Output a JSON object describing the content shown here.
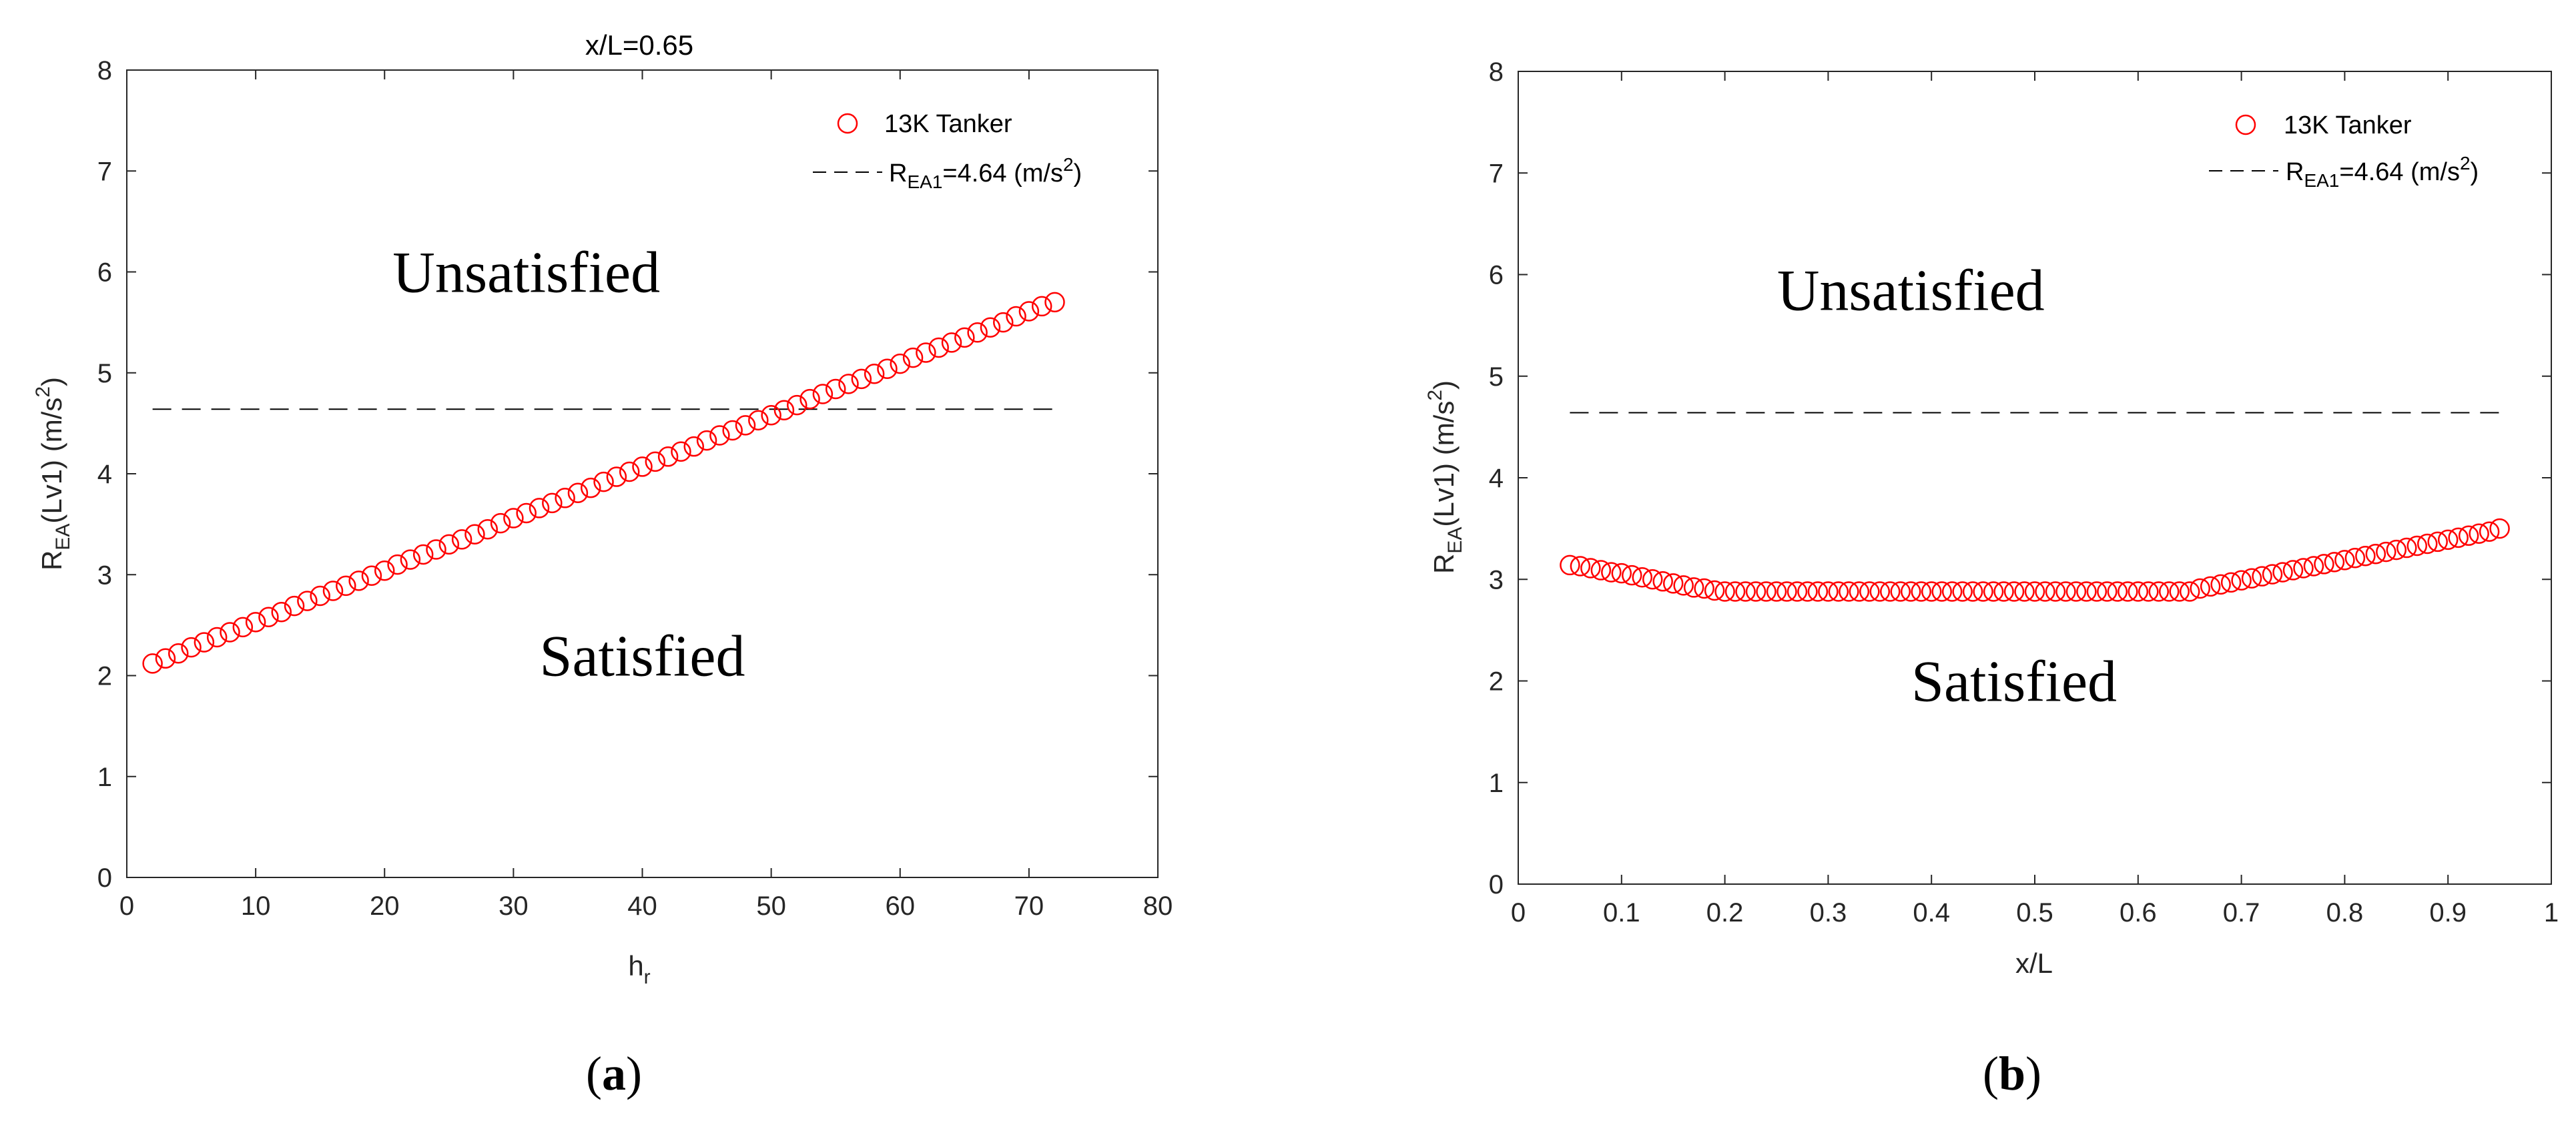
{
  "chart_data": [
    {
      "type": "scatter",
      "title": "x/L=0.65",
      "caption": {
        "open": "(",
        "letter": "a",
        "close": ")"
      },
      "xlabel": {
        "main": "h",
        "sub": "r"
      },
      "ylabel": {
        "main": "R",
        "sub": "EA",
        "rest": "(Lv1) (m/s",
        "sup": "2",
        "end": ")"
      },
      "xlim": [
        0,
        80
      ],
      "ylim": [
        0,
        8
      ],
      "xticks": [
        0,
        10,
        20,
        30,
        40,
        50,
        60,
        70,
        80
      ],
      "yticks": [
        0,
        1,
        2,
        3,
        4,
        5,
        6,
        7,
        8
      ],
      "xtick_labels": [
        "0",
        "10",
        "20",
        "30",
        "40",
        "50",
        "60",
        "70",
        "80"
      ],
      "ytick_labels": [
        "0",
        "1",
        "2",
        "3",
        "4",
        "5",
        "6",
        "7",
        "8"
      ],
      "series": [
        {
          "name": "13K Tanker",
          "marker": "circle",
          "color": "#ff0000",
          "x": [
            2,
            3,
            4,
            5,
            6,
            7,
            8,
            9,
            10,
            11,
            12,
            13,
            14,
            15,
            16,
            17,
            18,
            19,
            20,
            21,
            22,
            23,
            24,
            25,
            26,
            27,
            28,
            29,
            30,
            31,
            32,
            33,
            34,
            35,
            36,
            37,
            38,
            39,
            40,
            41,
            42,
            43,
            44,
            45,
            46,
            47,
            48,
            49,
            50,
            51,
            52,
            53,
            54,
            55,
            56,
            57,
            58,
            59,
            60,
            61,
            62,
            63,
            64,
            65,
            66,
            67,
            68,
            69,
            70,
            71,
            72
          ],
          "y": [
            2.12,
            2.17,
            2.22,
            2.28,
            2.33,
            2.38,
            2.43,
            2.48,
            2.53,
            2.58,
            2.63,
            2.69,
            2.74,
            2.79,
            2.84,
            2.89,
            2.94,
            2.99,
            3.04,
            3.1,
            3.15,
            3.2,
            3.25,
            3.3,
            3.35,
            3.4,
            3.45,
            3.51,
            3.56,
            3.61,
            3.66,
            3.71,
            3.76,
            3.81,
            3.86,
            3.92,
            3.97,
            4.02,
            4.07,
            4.12,
            4.17,
            4.22,
            4.27,
            4.33,
            4.38,
            4.43,
            4.48,
            4.53,
            4.58,
            4.63,
            4.68,
            4.74,
            4.79,
            4.84,
            4.89,
            4.94,
            4.99,
            5.04,
            5.09,
            5.15,
            5.2,
            5.25,
            5.3,
            5.35,
            5.4,
            5.45,
            5.5,
            5.56,
            5.61,
            5.66,
            5.7
          ]
        }
      ],
      "reference_line": {
        "value": 4.64,
        "x_range": [
          2,
          72
        ],
        "style": "dashed",
        "color": "#000000"
      },
      "legend": {
        "position": "top-right",
        "entries": [
          {
            "label": "13K Tanker"
          },
          {
            "label_main": "R",
            "label_sub": "EA1",
            "label_rest": "=4.64 (m/s",
            "label_sup": "2",
            "label_end": ")"
          }
        ]
      },
      "annotations": [
        {
          "text": "Unsatisfied",
          "x": 31,
          "y": 6.0
        },
        {
          "text": "Satisfied",
          "x": 40,
          "y": 2.2
        }
      ]
    },
    {
      "type": "scatter",
      "title": "",
      "caption": {
        "open": "(",
        "letter": "b",
        "close": ")"
      },
      "xlabel": {
        "main": "x/L"
      },
      "ylabel": {
        "main": "R",
        "sub": "EA",
        "rest": "(Lv1) (m/s",
        "sup": "2",
        "end": ")"
      },
      "xlim": [
        0,
        1
      ],
      "ylim": [
        0,
        8
      ],
      "xticks": [
        0,
        0.1,
        0.2,
        0.3,
        0.4,
        0.5,
        0.6,
        0.7,
        0.8,
        0.9,
        1
      ],
      "yticks": [
        0,
        1,
        2,
        3,
        4,
        5,
        6,
        7,
        8
      ],
      "xtick_labels": [
        "0",
        "0.1",
        "0.2",
        "0.3",
        "0.4",
        "0.5",
        "0.6",
        "0.7",
        "0.8",
        "0.9",
        "1"
      ],
      "ytick_labels": [
        "0",
        "1",
        "2",
        "3",
        "4",
        "5",
        "6",
        "7",
        "8"
      ],
      "series": [
        {
          "name": "13K Tanker",
          "marker": "circle",
          "color": "#ff0000",
          "x": [
            0.05,
            0.06,
            0.07,
            0.08,
            0.09,
            0.1,
            0.11,
            0.12,
            0.13,
            0.14,
            0.15,
            0.16,
            0.17,
            0.18,
            0.19,
            0.2,
            0.21,
            0.22,
            0.23,
            0.24,
            0.25,
            0.26,
            0.27,
            0.28,
            0.29,
            0.3,
            0.31,
            0.32,
            0.33,
            0.34,
            0.35,
            0.36,
            0.37,
            0.38,
            0.39,
            0.4,
            0.41,
            0.42,
            0.43,
            0.44,
            0.45,
            0.46,
            0.47,
            0.48,
            0.49,
            0.5,
            0.51,
            0.52,
            0.53,
            0.54,
            0.55,
            0.56,
            0.57,
            0.58,
            0.59,
            0.6,
            0.61,
            0.62,
            0.63,
            0.64,
            0.65,
            0.66,
            0.67,
            0.68,
            0.69,
            0.7,
            0.71,
            0.72,
            0.73,
            0.74,
            0.75,
            0.76,
            0.77,
            0.78,
            0.79,
            0.8,
            0.81,
            0.82,
            0.83,
            0.84,
            0.85,
            0.86,
            0.87,
            0.88,
            0.89,
            0.9,
            0.91,
            0.92,
            0.93,
            0.94,
            0.95
          ],
          "y": [
            3.14,
            3.13,
            3.11,
            3.09,
            3.07,
            3.06,
            3.04,
            3.02,
            3.0,
            2.98,
            2.96,
            2.94,
            2.92,
            2.91,
            2.89,
            2.88,
            2.88,
            2.88,
            2.88,
            2.88,
            2.88,
            2.88,
            2.88,
            2.88,
            2.88,
            2.88,
            2.88,
            2.88,
            2.88,
            2.88,
            2.88,
            2.88,
            2.88,
            2.88,
            2.88,
            2.88,
            2.88,
            2.88,
            2.88,
            2.88,
            2.88,
            2.88,
            2.88,
            2.88,
            2.88,
            2.88,
            2.88,
            2.88,
            2.88,
            2.88,
            2.88,
            2.88,
            2.88,
            2.88,
            2.88,
            2.88,
            2.88,
            2.88,
            2.88,
            2.88,
            2.88,
            2.91,
            2.93,
            2.95,
            2.97,
            2.99,
            3.01,
            3.03,
            3.05,
            3.07,
            3.09,
            3.11,
            3.13,
            3.15,
            3.17,
            3.19,
            3.21,
            3.23,
            3.25,
            3.27,
            3.29,
            3.31,
            3.33,
            3.35,
            3.37,
            3.39,
            3.41,
            3.43,
            3.45,
            3.47,
            3.5
          ]
        }
      ],
      "reference_line": {
        "value": 4.64,
        "x_range": [
          0.05,
          0.95
        ],
        "style": "dashed",
        "color": "#000000"
      },
      "legend": {
        "position": "top-right",
        "entries": [
          {
            "label": "13K Tanker"
          },
          {
            "label_main": "R",
            "label_sub": "EA1",
            "label_rest": "=4.64 (m/s",
            "label_sup": "2",
            "label_end": ")"
          }
        ]
      },
      "annotations": [
        {
          "text": "Unsatisfied",
          "x": 0.38,
          "y": 5.85
        },
        {
          "text": "Satisfied",
          "x": 0.48,
          "y": 2.0
        }
      ]
    }
  ]
}
